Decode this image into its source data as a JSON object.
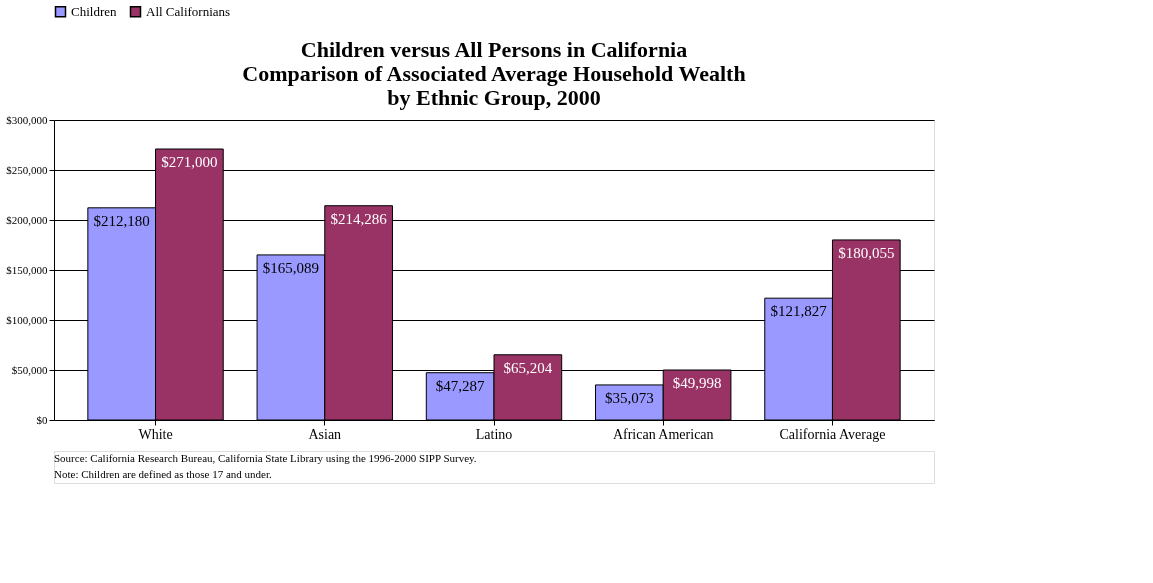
{
  "chart_data": {
    "type": "bar",
    "title": [
      "Children versus All Persons in California",
      "Comparison of Associated Average Household Wealth",
      "by Ethnic Group, 2000"
    ],
    "categories": [
      "White",
      "Asian",
      "Latino",
      "African American",
      "California Average"
    ],
    "series": [
      {
        "name": "Children",
        "color": "#9999ff",
        "values": [
          212180,
          165089,
          47287,
          35073,
          121827
        ],
        "value_labels": [
          "$212,180",
          "$165,089",
          "$47,287",
          "$35,073",
          "$121,827"
        ]
      },
      {
        "name": "All Californians",
        "color": "#993366",
        "values": [
          271000,
          214286,
          65204,
          49998,
          180055
        ],
        "value_labels": [
          "$271,000",
          "$214,286",
          "$65,204",
          "$49,998",
          "$180,055"
        ]
      }
    ],
    "ylim": [
      0,
      300000
    ],
    "yticks": [
      {
        "value": 0,
        "label": "$0"
      },
      {
        "value": 50000,
        "label": "$50,000"
      },
      {
        "value": 100000,
        "label": "$100,000"
      },
      {
        "value": 150000,
        "label": "$150,000"
      },
      {
        "value": 200000,
        "label": "$200,000"
      },
      {
        "value": 250000,
        "label": "$250,000"
      },
      {
        "value": 300000,
        "label": "$300,000"
      }
    ],
    "grid": "y",
    "legend": "top",
    "annotations": [
      "Source:  California Research Bureau, California State Library using the 1996-2000 SIPP Survey.",
      "Note:  Children are defined as those 17 and under."
    ]
  }
}
